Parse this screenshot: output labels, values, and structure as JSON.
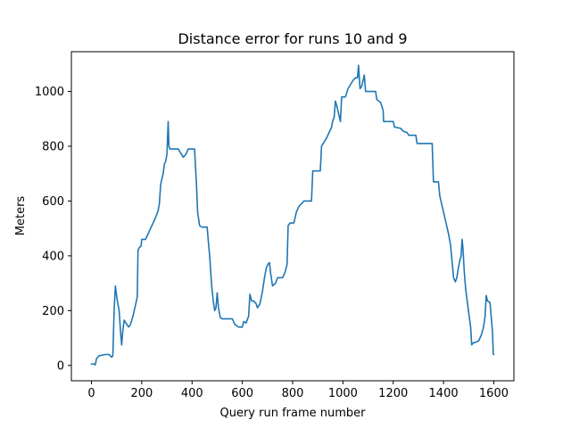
{
  "chart_data": {
    "type": "line",
    "title": "Distance error for runs 10 and 9",
    "xlabel": "Query run frame number",
    "ylabel": "Meters",
    "xlim": [
      -80,
      1680
    ],
    "ylim": [
      -56,
      1145
    ],
    "xticks": [
      0,
      200,
      400,
      600,
      800,
      1000,
      1200,
      1400,
      1600
    ],
    "yticks": [
      0,
      200,
      400,
      600,
      800,
      1000
    ],
    "grid": false,
    "series": [
      {
        "color": "#1f77b4",
        "points": [
          [
            0,
            5
          ],
          [
            10,
            5
          ],
          [
            15,
            2
          ],
          [
            20,
            25
          ],
          [
            30,
            35
          ],
          [
            45,
            38
          ],
          [
            55,
            40
          ],
          [
            70,
            40
          ],
          [
            80,
            30
          ],
          [
            85,
            35
          ],
          [
            90,
            200
          ],
          [
            95,
            290
          ],
          [
            102,
            240
          ],
          [
            110,
            200
          ],
          [
            115,
            130
          ],
          [
            120,
            75
          ],
          [
            125,
            130
          ],
          [
            130,
            165
          ],
          [
            140,
            150
          ],
          [
            148,
            140
          ],
          [
            155,
            150
          ],
          [
            165,
            180
          ],
          [
            175,
            220
          ],
          [
            182,
            250
          ],
          [
            185,
            420
          ],
          [
            190,
            430
          ],
          [
            197,
            435
          ],
          [
            200,
            460
          ],
          [
            215,
            460
          ],
          [
            230,
            490
          ],
          [
            245,
            520
          ],
          [
            255,
            540
          ],
          [
            265,
            565
          ],
          [
            270,
            590
          ],
          [
            275,
            660
          ],
          [
            285,
            700
          ],
          [
            290,
            735
          ],
          [
            295,
            745
          ],
          [
            300,
            770
          ],
          [
            305,
            890
          ],
          [
            308,
            800
          ],
          [
            312,
            790
          ],
          [
            330,
            790
          ],
          [
            345,
            790
          ],
          [
            355,
            775
          ],
          [
            365,
            760
          ],
          [
            375,
            770
          ],
          [
            385,
            790
          ],
          [
            410,
            790
          ],
          [
            418,
            650
          ],
          [
            422,
            560
          ],
          [
            430,
            510
          ],
          [
            440,
            505
          ],
          [
            460,
            505
          ],
          [
            465,
            450
          ],
          [
            470,
            400
          ],
          [
            478,
            290
          ],
          [
            485,
            230
          ],
          [
            490,
            200
          ],
          [
            495,
            210
          ],
          [
            500,
            265
          ],
          [
            505,
            210
          ],
          [
            512,
            175
          ],
          [
            520,
            170
          ],
          [
            560,
            170
          ],
          [
            570,
            150
          ],
          [
            585,
            140
          ],
          [
            600,
            140
          ],
          [
            605,
            160
          ],
          [
            615,
            155
          ],
          [
            625,
            180
          ],
          [
            630,
            260
          ],
          [
            637,
            235
          ],
          [
            645,
            235
          ],
          [
            655,
            225
          ],
          [
            660,
            210
          ],
          [
            670,
            225
          ],
          [
            680,
            270
          ],
          [
            688,
            320
          ],
          [
            695,
            355
          ],
          [
            702,
            370
          ],
          [
            708,
            375
          ],
          [
            712,
            340
          ],
          [
            720,
            290
          ],
          [
            732,
            300
          ],
          [
            740,
            320
          ],
          [
            760,
            320
          ],
          [
            770,
            340
          ],
          [
            778,
            370
          ],
          [
            782,
            510
          ],
          [
            790,
            520
          ],
          [
            805,
            520
          ],
          [
            815,
            560
          ],
          [
            825,
            580
          ],
          [
            835,
            590
          ],
          [
            845,
            600
          ],
          [
            875,
            600
          ],
          [
            880,
            710
          ],
          [
            910,
            710
          ],
          [
            915,
            800
          ],
          [
            925,
            815
          ],
          [
            935,
            830
          ],
          [
            945,
            850
          ],
          [
            955,
            870
          ],
          [
            960,
            895
          ],
          [
            965,
            905
          ],
          [
            970,
            965
          ],
          [
            975,
            950
          ],
          [
            980,
            930
          ],
          [
            990,
            890
          ],
          [
            995,
            980
          ],
          [
            1010,
            980
          ],
          [
            1020,
            1010
          ],
          [
            1030,
            1025
          ],
          [
            1040,
            1040
          ],
          [
            1050,
            1050
          ],
          [
            1058,
            1050
          ],
          [
            1062,
            1095
          ],
          [
            1068,
            1010
          ],
          [
            1075,
            1020
          ],
          [
            1080,
            1040
          ],
          [
            1085,
            1060
          ],
          [
            1090,
            1000
          ],
          [
            1130,
            1000
          ],
          [
            1135,
            970
          ],
          [
            1150,
            960
          ],
          [
            1160,
            930
          ],
          [
            1162,
            890
          ],
          [
            1200,
            890
          ],
          [
            1205,
            870
          ],
          [
            1230,
            865
          ],
          [
            1240,
            855
          ],
          [
            1255,
            850
          ],
          [
            1262,
            840
          ],
          [
            1290,
            840
          ],
          [
            1295,
            810
          ],
          [
            1355,
            810
          ],
          [
            1360,
            670
          ],
          [
            1380,
            670
          ],
          [
            1385,
            620
          ],
          [
            1395,
            580
          ],
          [
            1405,
            540
          ],
          [
            1415,
            500
          ],
          [
            1420,
            480
          ],
          [
            1428,
            440
          ],
          [
            1432,
            400
          ],
          [
            1436,
            360
          ],
          [
            1440,
            320
          ],
          [
            1447,
            305
          ],
          [
            1453,
            320
          ],
          [
            1458,
            350
          ],
          [
            1464,
            380
          ],
          [
            1470,
            400
          ],
          [
            1474,
            460
          ],
          [
            1478,
            420
          ],
          [
            1482,
            350
          ],
          [
            1488,
            280
          ],
          [
            1495,
            230
          ],
          [
            1502,
            180
          ],
          [
            1508,
            140
          ],
          [
            1512,
            75
          ],
          [
            1518,
            82
          ],
          [
            1530,
            85
          ],
          [
            1540,
            90
          ],
          [
            1550,
            110
          ],
          [
            1558,
            135
          ],
          [
            1565,
            175
          ],
          [
            1570,
            255
          ],
          [
            1575,
            235
          ],
          [
            1585,
            230
          ],
          [
            1590,
            175
          ],
          [
            1595,
            120
          ],
          [
            1598,
            42
          ],
          [
            1600,
            40
          ]
        ]
      }
    ]
  }
}
